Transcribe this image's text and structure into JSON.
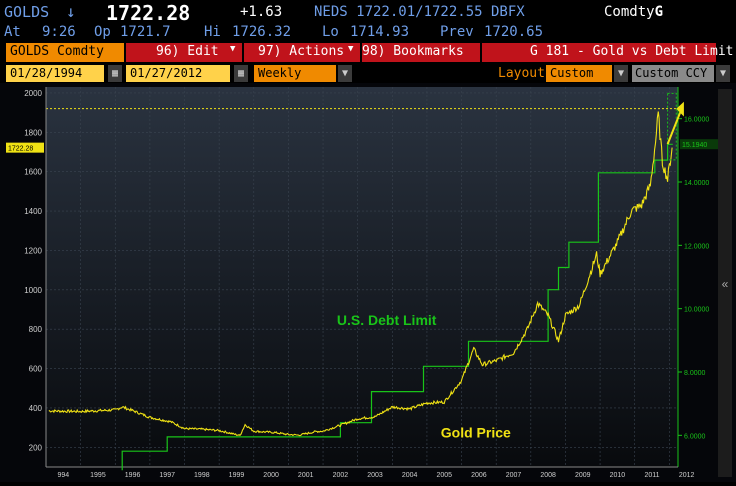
{
  "header": {
    "ticker": "GOLDS",
    "arrow": "↓",
    "price": "1722.28",
    "change": "+1.63",
    "source": "NEDS 1722.01/1722.55 DBFX",
    "market": "Comdty",
    "market_key": "G"
  },
  "quote": {
    "at": "At",
    "time": "9:26",
    "op_label": "Op",
    "op": "1721.7",
    "hi_label": "Hi",
    "hi": "1726.32",
    "lo_label": "Lo",
    "lo": "1714.93",
    "prev_label": "Prev",
    "prev": "1720.65"
  },
  "toolbar": {
    "security": "GOLDS Comdty",
    "edit": "96) Edit",
    "actions": "97) Actions",
    "bookmarks": "98) Bookmarks",
    "graph_title": "G 181 - Gold vs Debt Limit"
  },
  "settings": {
    "start_date": "01/28/1994",
    "end_date": "01/27/2012",
    "period": "Weekly",
    "layout_label": "Layout",
    "layout_value": "Custom",
    "currency": "Custom CCY"
  },
  "colors": {
    "gold": "#f0e214",
    "debt": "#19c419",
    "accent_orange": "#f08a00",
    "accent_red": "#c0131b",
    "highlight": "#ffd24a"
  },
  "chart_data": {
    "type": "line",
    "x_ticks": [
      "994",
      "1995",
      "1996",
      "1997",
      "1998",
      "1999",
      "2000",
      "2001",
      "2002",
      "2003",
      "2004",
      "2005",
      "2006",
      "2007",
      "2008",
      "2009",
      "2010",
      "2011",
      "2012"
    ],
    "left_ticks": [
      "2000",
      "1800",
      "1600",
      "1400",
      "1200",
      "1000",
      "800",
      "600",
      "400",
      "200"
    ],
    "right_ticks": [
      "16.0000",
      "14.0000",
      "12.0000",
      "10.0000",
      "8.0000",
      "6.0000"
    ],
    "last_price_label": "1722.28",
    "last_debt_label": "15.1940",
    "ylim_left": [
      100,
      2030
    ],
    "ylim_right": [
      5.0,
      17.0
    ],
    "series": [
      {
        "name": "Gold Price",
        "axis": "left",
        "points": [
          [
            1994.08,
            385
          ],
          [
            1995,
            382
          ],
          [
            1996,
            390
          ],
          [
            1996.2,
            405
          ],
          [
            1996.6,
            380
          ],
          [
            1997,
            352
          ],
          [
            1997.6,
            330
          ],
          [
            1998,
            295
          ],
          [
            1998.5,
            292
          ],
          [
            1999,
            285
          ],
          [
            1999.6,
            260
          ],
          [
            1999.75,
            315
          ],
          [
            2000,
            282
          ],
          [
            2000.6,
            275
          ],
          [
            2001,
            265
          ],
          [
            2001.3,
            262
          ],
          [
            2001.8,
            280
          ],
          [
            2002,
            282
          ],
          [
            2002.5,
            312
          ],
          [
            2003,
            345
          ],
          [
            2003.5,
            355
          ],
          [
            2004,
            405
          ],
          [
            2004.5,
            395
          ],
          [
            2005,
            425
          ],
          [
            2005.5,
            430
          ],
          [
            2006,
            540
          ],
          [
            2006.35,
            700
          ],
          [
            2006.6,
            620
          ],
          [
            2007,
            640
          ],
          [
            2007.5,
            680
          ],
          [
            2007.9,
            800
          ],
          [
            2008.2,
            930
          ],
          [
            2008.5,
            870
          ],
          [
            2008.8,
            740
          ],
          [
            2009,
            870
          ],
          [
            2009.4,
            920
          ],
          [
            2009.9,
            1180
          ],
          [
            2010,
            1080
          ],
          [
            2010.5,
            1240
          ],
          [
            2010.9,
            1400
          ],
          [
            2011.2,
            1430
          ],
          [
            2011.45,
            1530
          ],
          [
            2011.6,
            1750
          ],
          [
            2011.68,
            1890
          ],
          [
            2011.8,
            1650
          ],
          [
            2011.95,
            1560
          ],
          [
            2012.08,
            1722
          ]
        ]
      },
      {
        "name": "U.S. Debt Limit",
        "axis": "right",
        "points": [
          [
            1996.2,
            4.9
          ],
          [
            1996.2,
            5.5
          ],
          [
            1997.5,
            5.5
          ],
          [
            1997.5,
            5.95
          ],
          [
            2002.5,
            5.95
          ],
          [
            2002.5,
            6.4
          ],
          [
            2003.4,
            6.4
          ],
          [
            2003.4,
            7.38
          ],
          [
            2004.9,
            7.38
          ],
          [
            2004.9,
            8.18
          ],
          [
            2006.2,
            8.18
          ],
          [
            2006.2,
            8.97
          ],
          [
            2008.5,
            8.97
          ],
          [
            2008.5,
            10.6
          ],
          [
            2008.8,
            10.6
          ],
          [
            2008.8,
            11.3
          ],
          [
            2009.1,
            11.3
          ],
          [
            2009.1,
            12.1
          ],
          [
            2009.95,
            12.1
          ],
          [
            2009.95,
            14.29
          ],
          [
            2011.58,
            14.29
          ],
          [
            2011.58,
            14.69
          ],
          [
            2011.95,
            14.69
          ],
          [
            2011.95,
            15.19
          ],
          [
            2012.1,
            15.19
          ]
        ]
      }
    ],
    "annotations": [
      {
        "text": "U.S. Debt Limit",
        "color": "#19c419"
      },
      {
        "text": "Gold Price",
        "color": "#f0e214"
      }
    ]
  }
}
